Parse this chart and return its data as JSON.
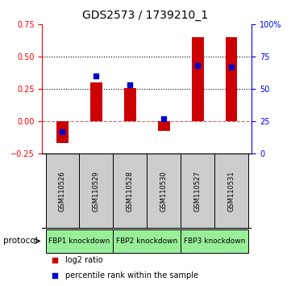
{
  "title": "GDS2573 / 1739210_1",
  "samples": [
    "GSM110526",
    "GSM110529",
    "GSM110528",
    "GSM110530",
    "GSM110527",
    "GSM110531"
  ],
  "log2_ratio": [
    -0.17,
    0.3,
    0.26,
    -0.075,
    0.65,
    0.65
  ],
  "percentile_rank": [
    0.17,
    0.6,
    0.535,
    0.27,
    0.68,
    0.67
  ],
  "bar_color": "#cc0000",
  "square_color": "#0000cc",
  "left_ylim": [
    -0.25,
    0.75
  ],
  "right_ylim": [
    0,
    100
  ],
  "left_yticks": [
    -0.25,
    0,
    0.25,
    0.5,
    0.75
  ],
  "right_yticks": [
    0,
    25,
    50,
    75,
    100
  ],
  "right_yticklabels": [
    "0",
    "25",
    "50",
    "75",
    "100%"
  ],
  "hlines_dotted": [
    0.25,
    0.5
  ],
  "hline_dashed": 0.0,
  "groups": [
    {
      "label": "FBP1 knockdown",
      "indices": [
        0,
        1
      ],
      "color": "#99ee99"
    },
    {
      "label": "FBP2 knockdown",
      "indices": [
        2,
        3
      ],
      "color": "#99ee99"
    },
    {
      "label": "FBP3 knockdown",
      "indices": [
        4,
        5
      ],
      "color": "#99ee99"
    }
  ],
  "protocol_label": "protocol",
  "legend_items": [
    {
      "color": "#cc0000",
      "label": "log2 ratio"
    },
    {
      "color": "#0000cc",
      "label": "percentile rank within the sample"
    }
  ],
  "bar_width": 0.35,
  "square_size": 18,
  "title_fontsize": 10,
  "tick_fontsize": 7,
  "sample_fontsize": 6,
  "group_fontsize": 6.5,
  "legend_fontsize": 7
}
